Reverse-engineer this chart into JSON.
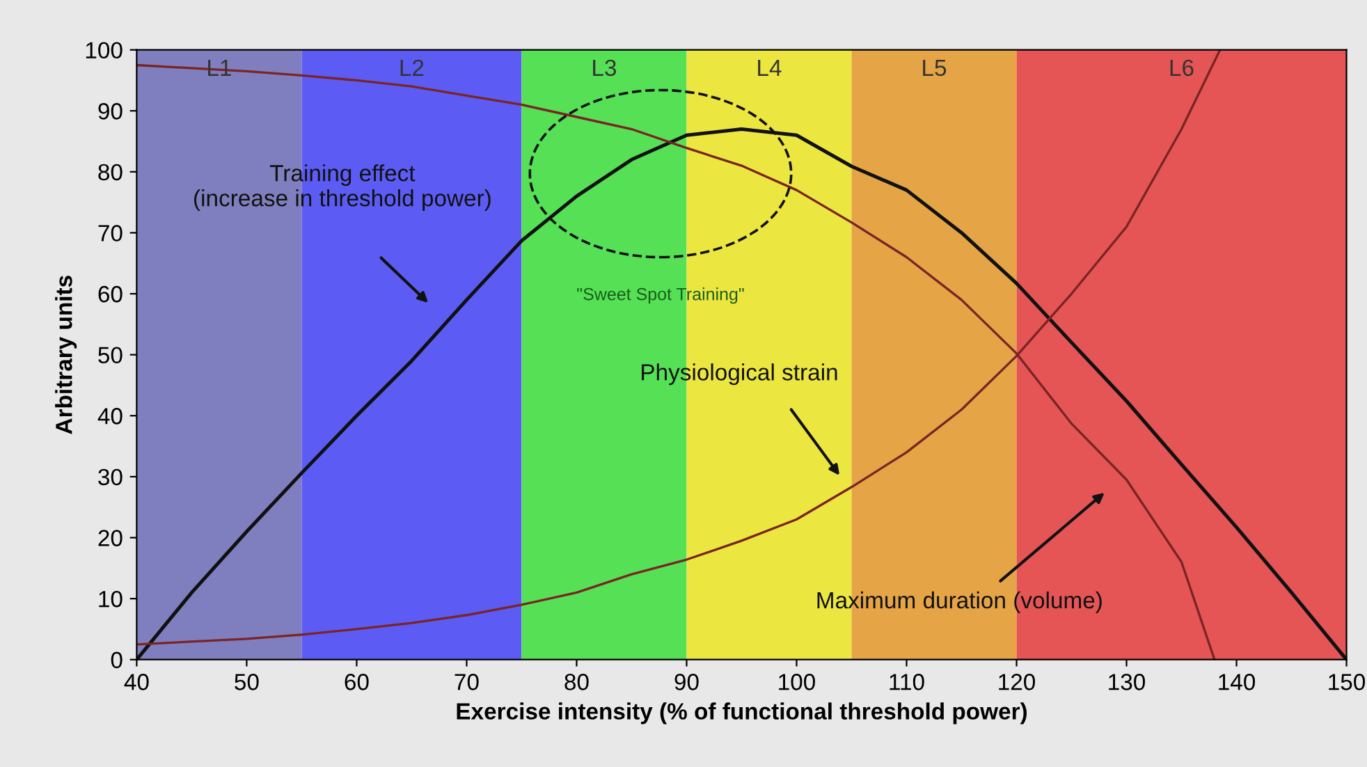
{
  "chart_data": {
    "type": "line",
    "xlabel": "Exercise intensity (% of functional threshold power)",
    "ylabel": "Arbitrary units",
    "xlim": [
      40,
      150
    ],
    "ylim": [
      0,
      100
    ],
    "xticks": [
      40,
      50,
      60,
      70,
      80,
      90,
      100,
      110,
      120,
      130,
      140,
      150
    ],
    "yticks": [
      0,
      10,
      20,
      30,
      40,
      50,
      60,
      70,
      80,
      90,
      100
    ],
    "grid": false,
    "legend": false,
    "marker": "none",
    "line_style": "solid",
    "series": [
      {
        "color": "#111111",
        "x": [
          40,
          45,
          50,
          55,
          60,
          65,
          70,
          75,
          80,
          85,
          90,
          95,
          100,
          105,
          110,
          115,
          120,
          125,
          130,
          135,
          140,
          145,
          150
        ],
        "values": [
          0,
          11,
          21,
          30.6,
          40,
          49,
          59,
          68.7,
          76,
          82,
          86,
          87,
          86,
          80.9,
          77,
          70,
          61.7,
          52,
          42.4,
          32,
          21.7,
          11,
          0
        ]
      },
      {
        "color": "#7a2424",
        "x": [
          40,
          45,
          50,
          55,
          60,
          65,
          70,
          75,
          80,
          85,
          90,
          95,
          100,
          105,
          110,
          115,
          120,
          125,
          130,
          135,
          138
        ],
        "values": [
          97.5,
          97,
          96.5,
          95.8,
          95,
          94,
          92.5,
          91,
          89,
          87,
          83.9,
          81,
          77,
          71.7,
          66,
          59,
          50.2,
          38.7,
          29.5,
          16,
          0
        ]
      },
      {
        "color": "#7a2424",
        "x": [
          40,
          50,
          55,
          60,
          65,
          70,
          75,
          80,
          85,
          90,
          95,
          100,
          105,
          110,
          115,
          120,
          125,
          130,
          135,
          138.5
        ],
        "values": [
          2.5,
          3.4,
          4.1,
          5,
          6,
          7.3,
          9,
          11,
          14,
          16.4,
          19.5,
          23,
          28.3,
          34,
          41,
          49.8,
          60,
          71,
          87,
          100
        ]
      }
    ],
    "bands": [
      {
        "axis": "x",
        "from": 40,
        "to": 55,
        "label": "L1",
        "color": "#7f7fbf"
      },
      {
        "axis": "x",
        "from": 55,
        "to": 75,
        "label": "L2",
        "color": "#5c5cf5"
      },
      {
        "axis": "x",
        "from": 75,
        "to": 90,
        "label": "L3",
        "color": "#55e055"
      },
      {
        "axis": "x",
        "from": 90,
        "to": 105,
        "label": "L4",
        "color": "#ece640"
      },
      {
        "axis": "x",
        "from": 105,
        "to": 120,
        "label": "L5",
        "color": "#e5a445"
      },
      {
        "axis": "x",
        "from": 120,
        "to": 150,
        "label": "L6",
        "color": "#e55555"
      }
    ],
    "annotations": [
      "Training effect\n(increase in threshold power)",
      "Physiological strain",
      "Maximum duration (volume)",
      "\"Sweet Spot Training\""
    ]
  }
}
